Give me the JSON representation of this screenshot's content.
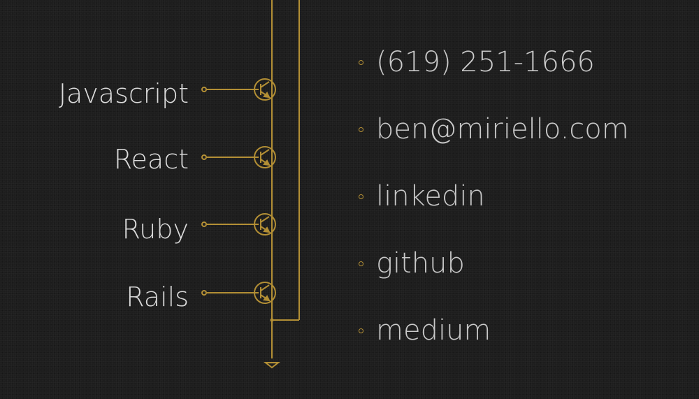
{
  "skills": [
    {
      "label": "Javascript"
    },
    {
      "label": "React"
    },
    {
      "label": "Ruby"
    },
    {
      "label": "Rails"
    }
  ],
  "contacts": [
    {
      "label": "(619) 251-1666"
    },
    {
      "label": "ben@miriello.com"
    },
    {
      "label": "linkedin"
    },
    {
      "label": "github"
    },
    {
      "label": "medium"
    }
  ],
  "colors": {
    "background": "#1d1d1d",
    "circuit_gold": "#b38f35",
    "skill_text": "#dcdcdc",
    "contact_text": "#c9c9c9"
  },
  "icons": [
    "transistor-icon",
    "ground-icon",
    "bullet-dot-icon"
  ]
}
